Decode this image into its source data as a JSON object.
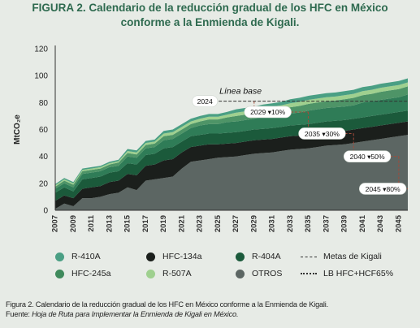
{
  "figure": {
    "title_line1": "FIGURA 2. Calendario de la reducción gradual de los HFC en México",
    "title_line2": "conforme a la Enmienda de Kigali."
  },
  "caption": {
    "line1": "Figura 2. Calendario de la reducción gradual de los HFC en México conforme a la Enmienda de Kigali.",
    "source_prefix": "Fuente: ",
    "source_text": "Hoja de Ruta para Implementar la Enmienda de Kigali en México."
  },
  "legend": [
    {
      "label": "R-410A",
      "kind": "dot",
      "color": "#4a9f84"
    },
    {
      "label": "HFC-134a",
      "kind": "dot",
      "color": "#1b1f1c"
    },
    {
      "label": "R-404A",
      "kind": "dot",
      "color": "#1b5a3b"
    },
    {
      "label": "Metas de Kigali",
      "kind": "dash",
      "color": "#333333"
    },
    {
      "label": "HFC-245a",
      "kind": "dot",
      "color": "#3f8a5c"
    },
    {
      "label": "R-507A",
      "kind": "dot",
      "color": "#9fd08f"
    },
    {
      "label": "OTROS",
      "kind": "dot",
      "color": "#5c6663"
    },
    {
      "label": "LB HFC+HCF65%",
      "kind": "dotline",
      "color": "#333333"
    }
  ],
  "chart_data": {
    "type": "area",
    "stacked": true,
    "ylabel": "MtCO₂e",
    "xlabel": "",
    "ylim": [
      0,
      120
    ],
    "yticks": [
      0,
      20,
      40,
      60,
      80,
      100,
      120
    ],
    "xlim": [
      2007,
      2046
    ],
    "xticks": [
      2007,
      2009,
      2011,
      2013,
      2015,
      2017,
      2019,
      2021,
      2023,
      2025,
      2027,
      2029,
      2031,
      2033,
      2035,
      2037,
      2039,
      2041,
      2043,
      2045
    ],
    "grid": false,
    "x": [
      2007,
      2008,
      2009,
      2010,
      2011,
      2012,
      2013,
      2014,
      2015,
      2016,
      2017,
      2018,
      2019,
      2020,
      2021,
      2022,
      2023,
      2024,
      2025,
      2026,
      2027,
      2028,
      2029,
      2030,
      2031,
      2032,
      2033,
      2034,
      2035,
      2036,
      2037,
      2038,
      2039,
      2040,
      2041,
      2042,
      2043,
      2044,
      2045,
      2046
    ],
    "series": [
      {
        "name": "OTROS",
        "color": "#5c6663",
        "values": [
          1,
          5,
          3,
          9,
          9,
          10,
          12,
          13,
          17,
          15,
          22,
          23,
          24,
          25,
          31,
          36,
          37,
          38,
          39,
          39.5,
          40,
          41,
          42,
          42.5,
          43,
          44,
          45,
          45.5,
          46,
          47,
          48,
          48.5,
          49,
          50,
          51,
          52,
          53,
          54,
          55,
          56
        ]
      },
      {
        "name": "HFC-134a",
        "color": "#1b1f1c",
        "values": [
          6,
          6,
          6,
          7,
          8,
          8,
          9,
          9,
          10,
          11,
          11,
          11,
          13,
          13,
          12,
          11,
          11,
          11,
          10,
          10,
          10,
          10,
          10,
          10,
          10,
          10,
          10,
          10,
          10,
          10,
          10,
          10,
          10,
          10,
          10,
          10,
          10,
          10,
          10,
          10
        ]
      },
      {
        "name": "R-404A",
        "color": "#1b5a3b",
        "values": [
          6,
          6,
          5,
          7,
          7,
          7,
          7,
          7,
          8,
          8,
          8,
          8,
          9,
          9,
          8,
          8,
          8,
          8,
          8,
          8,
          8,
          8,
          8,
          8,
          8,
          8,
          8,
          8,
          8,
          8,
          8,
          8,
          8,
          8,
          8,
          8,
          8,
          8,
          8,
          8
        ]
      },
      {
        "name": "R-410A",
        "color": "#2f7c57",
        "values": [
          3,
          3,
          3,
          4,
          4,
          4,
          4,
          4,
          5,
          5,
          5,
          5,
          6,
          6,
          6,
          6,
          7,
          7,
          7,
          8,
          8,
          8,
          8,
          9,
          9,
          9,
          9,
          9,
          10,
          10,
          10,
          10,
          10,
          10,
          11,
          11,
          11,
          11,
          11,
          12
        ]
      },
      {
        "name": "HFC-245a",
        "color": "#4e9467",
        "values": [
          1.5,
          2,
          2,
          2,
          2,
          2,
          2,
          2.5,
          2.5,
          2.5,
          2.5,
          2.5,
          3,
          3,
          3,
          3,
          3,
          3.5,
          3.5,
          3.5,
          4,
          4,
          4,
          4,
          4.5,
          4.5,
          4.5,
          5,
          5,
          5,
          5,
          5,
          5.5,
          5.5,
          5.5,
          5.5,
          6,
          6,
          6,
          6
        ]
      },
      {
        "name": "R-507A",
        "color": "#9fd08f",
        "values": [
          1,
          1,
          1,
          1,
          1,
          1,
          1,
          1,
          1.5,
          1.5,
          1.5,
          1.5,
          2,
          2,
          2,
          2,
          2,
          2,
          2,
          2,
          2.5,
          2.5,
          2.5,
          2.5,
          2.5,
          2.5,
          3,
          3,
          3,
          3,
          3,
          3,
          3,
          3,
          3,
          3,
          3,
          3,
          3,
          3
        ]
      },
      {
        "name": "R-410A",
        "color": "#4a9f84",
        "values": [
          1,
          1,
          1,
          1,
          1,
          1,
          1,
          1,
          1.5,
          1.5,
          1.5,
          1.5,
          2,
          2,
          2,
          2,
          2,
          2,
          2,
          2,
          2.5,
          2.5,
          2.5,
          2.5,
          2.5,
          2.5,
          3,
          3,
          3,
          3,
          3,
          3,
          3,
          3,
          3,
          3,
          3,
          3,
          3,
          3
        ]
      }
    ],
    "baseline": {
      "label": "Línea base",
      "value": 81,
      "from": 2024,
      "to": 2046
    },
    "kigali_targets": [
      {
        "year": 2024,
        "label": "2024",
        "value": 81
      },
      {
        "year": 2029,
        "label": "2029 ▾10%",
        "value": 73
      },
      {
        "year": 2035,
        "label": "2035 ▾30%",
        "value": 57
      },
      {
        "year": 2040,
        "label": "2040 ▾50%",
        "value": 40
      },
      {
        "year": 2045,
        "label": "2045 ▾80%",
        "value": 16
      }
    ]
  }
}
